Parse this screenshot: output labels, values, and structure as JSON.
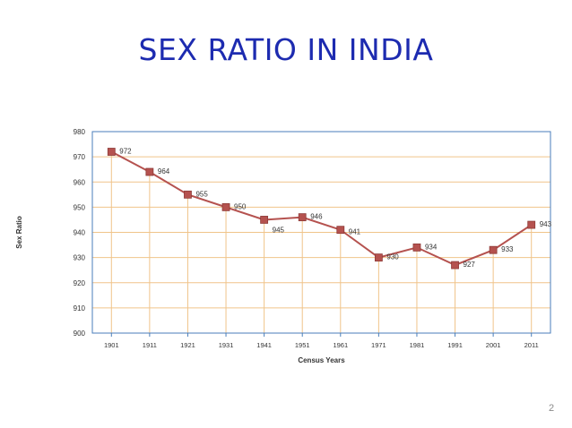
{
  "slide": {
    "title": "SEX RATIO IN INDIA",
    "page_number": "2"
  },
  "chart_data": {
    "type": "line",
    "xlabel": "Census Years",
    "ylabel": "Sex Ratio",
    "categories": [
      "1901",
      "1911",
      "1921",
      "1931",
      "1941",
      "1951",
      "1961",
      "1971",
      "1981",
      "1991",
      "2001",
      "2011"
    ],
    "series": [
      {
        "values": [
          972,
          964,
          955,
          950,
          945,
          946,
          941,
          930,
          934,
          927,
          933,
          943
        ]
      }
    ],
    "data_labels": [
      "972",
      "964",
      "955",
      "950",
      "945",
      "946",
      "941",
      "930",
      "934",
      "927",
      "933",
      "943"
    ],
    "ylim": [
      900,
      980
    ],
    "yticks": [
      "900",
      "910",
      "920",
      "930",
      "940",
      "950",
      "960",
      "970",
      "980"
    ],
    "grid": true,
    "colors": {
      "line": "#b5524f",
      "marker": "#b5524f",
      "grid": "#f0c48a",
      "axis": "#4a7ebb",
      "drop_lines": "#f0c48a"
    }
  }
}
